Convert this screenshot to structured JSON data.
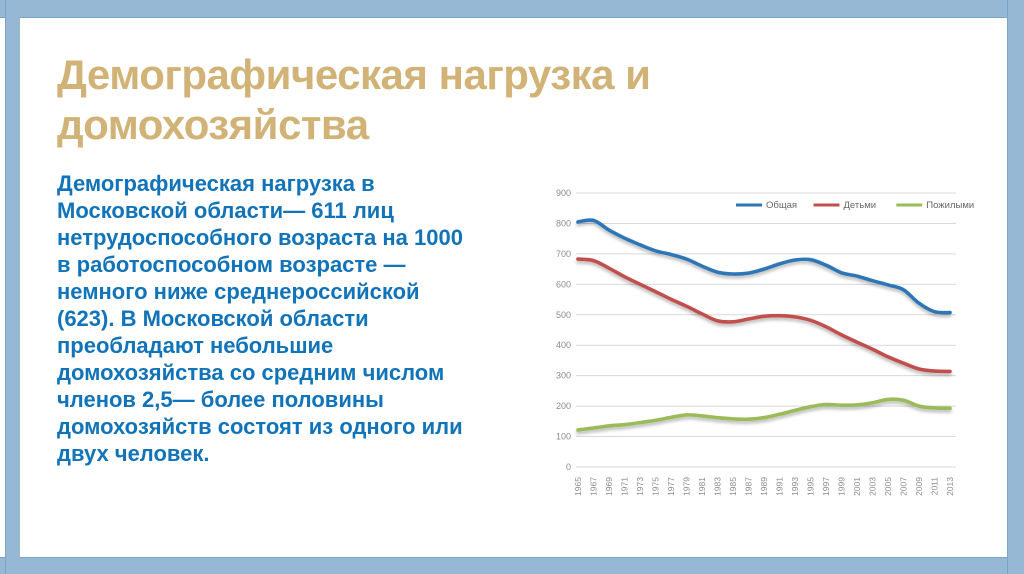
{
  "slide": {
    "title_lines": [
      "Демографическая нагрузка и",
      "домохозяйства"
    ],
    "body_lines": [
      "Демографическая нагрузка в",
      "Московской области— 611 лиц",
      "нетрудоспособного возраста на 1000",
      "в работоспособном возрасте —",
      "немного ниже среднероссийской",
      "(623). В Московской области",
      "преобладают небольшие",
      "домохозяйства со средним числом",
      "членов 2,5— более половины",
      "домохозяйств состоят из одного или",
      "двух человек."
    ]
  },
  "colors": {
    "frame": "#97B8D4",
    "frame_edge": "#79A5CA",
    "title_text": "#D2B377",
    "body_text": "#1173B8",
    "axis_text": "#8C8C8C",
    "legend_text": "#666666",
    "gridline": "#D9D9D9"
  },
  "chart_data": {
    "type": "line",
    "x": [
      1965,
      1967,
      1969,
      1971,
      1973,
      1975,
      1977,
      1979,
      1981,
      1983,
      1985,
      1987,
      1989,
      1991,
      1993,
      1995,
      1997,
      1999,
      2001,
      2003,
      2005,
      2007,
      2009,
      2011,
      2013
    ],
    "series": [
      {
        "name": "Общая",
        "color": "#2E76B5",
        "values": [
          805,
          810,
          778,
          752,
          730,
          710,
          698,
          683,
          660,
          640,
          634,
          637,
          650,
          667,
          680,
          681,
          663,
          638,
          627,
          612,
          598,
          582,
          538,
          510,
          507
        ]
      },
      {
        "name": "Детьми",
        "color": "#C0504D",
        "values": [
          683,
          678,
          653,
          625,
          600,
          576,
          551,
          528,
          503,
          480,
          477,
          486,
          495,
          497,
          493,
          482,
          461,
          434,
          410,
          387,
          362,
          341,
          322,
          315,
          314
        ]
      },
      {
        "name": "Пожилыми",
        "color": "#9BBB59",
        "values": [
          122,
          128,
          135,
          139,
          146,
          153,
          163,
          171,
          168,
          162,
          158,
          157,
          162,
          173,
          186,
          198,
          205,
          203,
          204,
          211,
          222,
          219,
          200,
          194,
          193
        ]
      }
    ],
    "xlabel": "",
    "ylabel": "",
    "ylim": [
      0,
      900
    ],
    "ytick_step": 100,
    "grid": true,
    "legend_position": "top-right"
  }
}
